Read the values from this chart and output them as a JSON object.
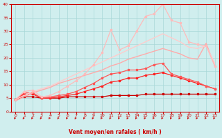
{
  "title": "",
  "xlabel": "Vent moyen/en rafales ( km/h )",
  "x": [
    0,
    1,
    2,
    3,
    4,
    5,
    6,
    7,
    8,
    9,
    10,
    11,
    12,
    13,
    14,
    15,
    16,
    17,
    18,
    19,
    20,
    21,
    22,
    23
  ],
  "lines": [
    {
      "color": "#cc0000",
      "linewidth": 0.9,
      "marker": "s",
      "markersize": 1.8,
      "y": [
        4.5,
        5.5,
        5.5,
        5.0,
        5.0,
        5.0,
        5.5,
        5.5,
        5.5,
        5.5,
        5.5,
        6.0,
        6.0,
        6.0,
        6.0,
        6.5,
        6.5,
        6.5,
        6.5,
        6.5,
        6.5,
        6.5,
        6.5,
        6.5
      ]
    },
    {
      "color": "#ff2222",
      "linewidth": 0.9,
      "marker": "s",
      "markersize": 1.8,
      "y": [
        4.5,
        6.5,
        6.5,
        5.0,
        5.0,
        5.5,
        6.0,
        6.5,
        7.5,
        8.5,
        9.5,
        11.0,
        11.5,
        12.5,
        12.5,
        13.5,
        14.0,
        14.5,
        13.5,
        12.5,
        11.5,
        10.5,
        9.5,
        8.5
      ]
    },
    {
      "color": "#ff5555",
      "linewidth": 0.9,
      "marker": "s",
      "markersize": 1.8,
      "y": [
        4.5,
        7.0,
        7.0,
        5.0,
        5.5,
        6.0,
        6.5,
        7.5,
        9.0,
        10.5,
        12.5,
        14.0,
        14.5,
        15.5,
        15.5,
        16.0,
        17.5,
        18.0,
        14.0,
        13.0,
        12.0,
        11.0,
        9.5,
        8.5
      ]
    },
    {
      "color": "#ffaaaa",
      "linewidth": 1.0,
      "marker": null,
      "markersize": 0,
      "y": [
        4.0,
        5.5,
        7.0,
        8.0,
        9.0,
        10.5,
        11.5,
        12.5,
        13.5,
        14.5,
        15.5,
        17.0,
        18.0,
        19.5,
        20.5,
        21.5,
        22.5,
        23.5,
        22.5,
        21.5,
        20.0,
        19.5,
        25.5,
        17.0
      ]
    },
    {
      "color": "#ffcccc",
      "linewidth": 1.0,
      "marker": null,
      "markersize": 0,
      "y": [
        4.5,
        6.0,
        7.5,
        8.5,
        9.5,
        11.0,
        12.5,
        14.0,
        15.5,
        17.0,
        18.5,
        20.0,
        21.5,
        23.0,
        24.5,
        26.0,
        27.5,
        29.0,
        27.5,
        26.0,
        24.0,
        23.5,
        24.5,
        18.0
      ]
    },
    {
      "color": "#ffbbbb",
      "linewidth": 0.9,
      "marker": "s",
      "markersize": 1.8,
      "y": [
        4.5,
        7.5,
        8.0,
        5.5,
        6.0,
        7.5,
        9.5,
        11.5,
        14.0,
        17.5,
        22.0,
        30.5,
        23.0,
        24.5,
        30.0,
        35.5,
        36.5,
        40.0,
        34.0,
        33.0,
        26.0,
        25.0,
        24.5,
        17.0
      ]
    }
  ],
  "background_color": "#d0eeee",
  "grid_color": "#a8d8d8",
  "xlim": [
    -0.5,
    23.5
  ],
  "ylim": [
    0,
    40
  ],
  "yticks": [
    0,
    5,
    10,
    15,
    20,
    25,
    30,
    35,
    40
  ],
  "xticks": [
    0,
    1,
    2,
    3,
    4,
    5,
    6,
    7,
    8,
    9,
    10,
    11,
    12,
    13,
    14,
    15,
    16,
    17,
    18,
    19,
    20,
    21,
    22,
    23
  ],
  "xlabel_color": "#cc0000",
  "tick_color": "#cc0000",
  "arrow_color": "#cc0000",
  "spine_color": "#cc0000"
}
